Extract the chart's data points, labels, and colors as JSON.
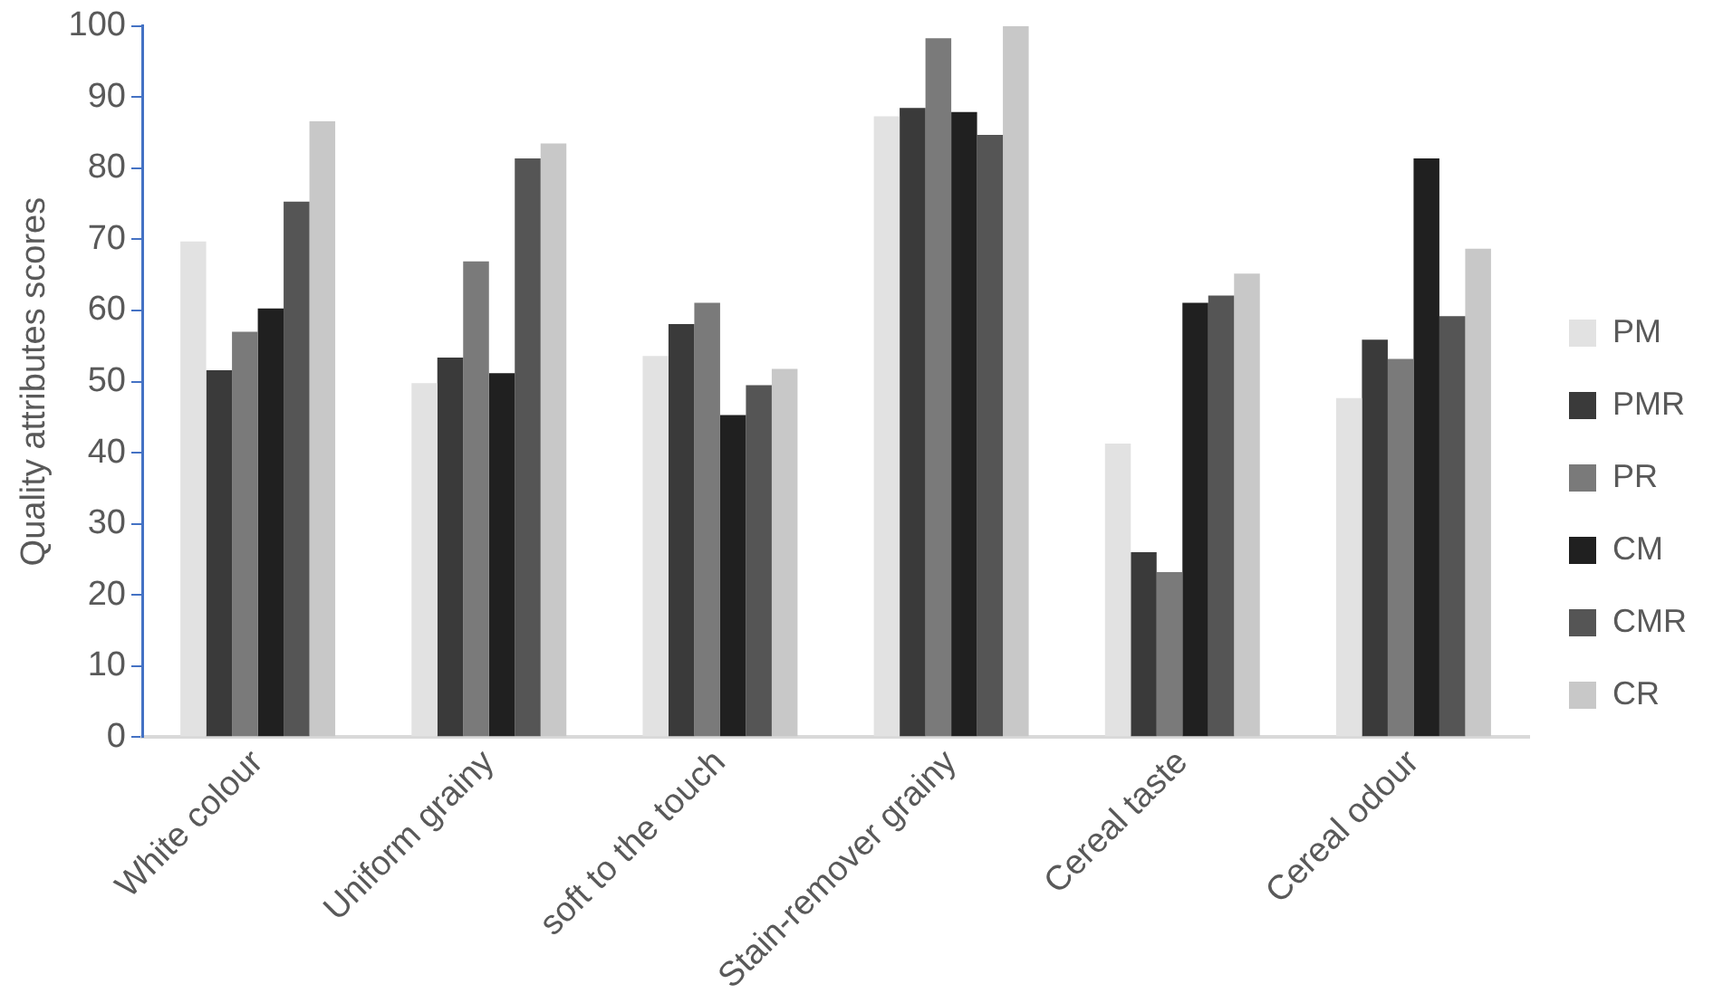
{
  "chart_data": {
    "type": "bar",
    "ylabel": "Quality attributes scores",
    "categories": [
      "White colour",
      "Uniform grainy",
      "soft to the touch",
      "Stain-remover grainy",
      "Cereal taste",
      "Cereal odour"
    ],
    "series": [
      {
        "name": "PM",
        "color": "#e2e2e2",
        "values": [
          69.7,
          49.8,
          53.6,
          87.3,
          41.3,
          47.7
        ]
      },
      {
        "name": "PMR",
        "color": "#3a3a3a",
        "values": [
          51.6,
          53.4,
          58.1,
          88.5,
          26.0,
          55.9
        ]
      },
      {
        "name": "PR",
        "color": "#7a7a7a",
        "values": [
          57.0,
          66.9,
          61.1,
          98.3,
          23.2,
          53.2
        ]
      },
      {
        "name": "CM",
        "color": "#202020",
        "values": [
          60.3,
          51.2,
          45.3,
          87.9,
          61.1,
          81.4
        ]
      },
      {
        "name": "CMR",
        "color": "#555555",
        "values": [
          75.3,
          81.4,
          49.5,
          84.7,
          62.1,
          59.2
        ]
      },
      {
        "name": "CR",
        "color": "#c8c8c8",
        "values": [
          86.6,
          83.5,
          51.8,
          100,
          65.2,
          68.7
        ]
      }
    ],
    "ylim": [
      0,
      100
    ],
    "yticks": [
      0,
      10,
      20,
      30,
      40,
      50,
      60,
      70,
      80,
      90,
      100
    ],
    "grid": false,
    "legend": "right"
  }
}
